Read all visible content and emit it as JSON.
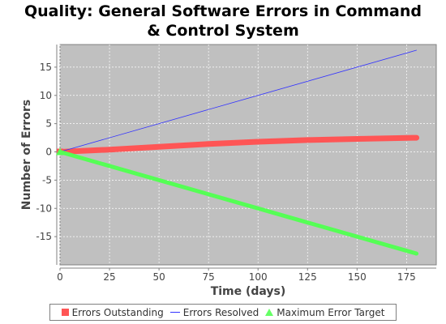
{
  "chart_data": {
    "type": "line",
    "title_lines": [
      "Quality: General Software Errors in Command",
      "& Control System"
    ],
    "xlabel": "Time (days)",
    "ylabel": "Number of Errors",
    "xlim": [
      0,
      190
    ],
    "ylim": [
      -20,
      19
    ],
    "x_ticks": [
      0,
      25,
      50,
      75,
      100,
      125,
      150,
      175
    ],
    "y_ticks": [
      -15,
      -10,
      -5,
      0,
      5,
      10,
      15
    ],
    "grid": true,
    "legend_position": "bottom",
    "series": [
      {
        "name": "Errors Outstanding",
        "color": "#ff5555",
        "marker": "square",
        "x": [
          0,
          25,
          50,
          75,
          100,
          125,
          150,
          180
        ],
        "y": [
          0,
          0.4,
          0.9,
          1.4,
          1.8,
          2.1,
          2.3,
          2.5
        ]
      },
      {
        "name": "Errors Resolved",
        "color": "#3333ff",
        "marker": "none",
        "x": [
          0,
          180
        ],
        "y": [
          0,
          18
        ]
      },
      {
        "name": "Maximum Error Target",
        "color": "#55ff55",
        "marker": "triangle",
        "x": [
          0,
          180
        ],
        "y": [
          0,
          -18
        ]
      }
    ]
  }
}
